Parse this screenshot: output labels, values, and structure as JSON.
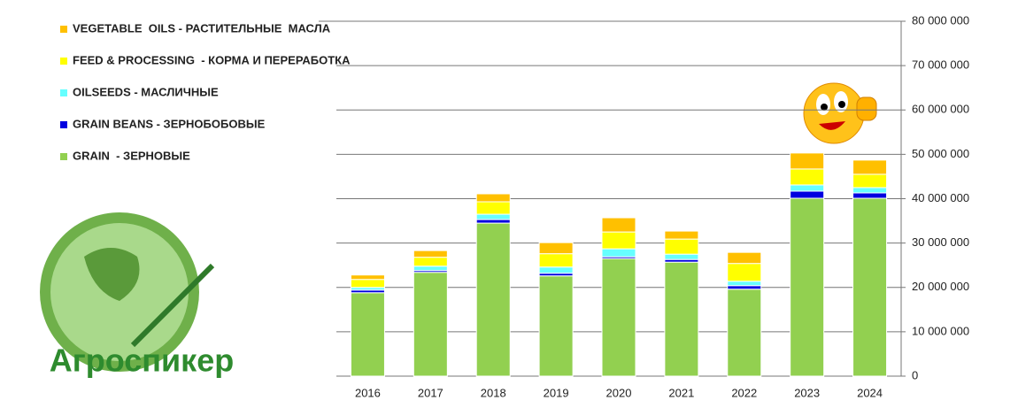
{
  "chart_data": {
    "type": "stacked-bar",
    "categories": [
      "2016",
      "2017",
      "2018",
      "2019",
      "2020",
      "2021",
      "2022",
      "2023",
      "2024"
    ],
    "series": [
      {
        "name": "GRAIN  - ЗЕРНОВЫЕ",
        "color": "#92d050",
        "values": [
          18800000,
          23400000,
          34500000,
          22600000,
          26500000,
          25700000,
          19600000,
          40100000,
          40100000
        ]
      },
      {
        "name": "GRAIN BEANS - ЗЕРНОБОБОВЫЕ",
        "color": "#0000e0",
        "values": [
          600000,
          400000,
          800000,
          600000,
          400000,
          600000,
          800000,
          1600000,
          1200000
        ]
      },
      {
        "name": "OILSEEDS - МАСЛИЧНЫЕ",
        "color": "#66ffff",
        "values": [
          600000,
          1000000,
          1200000,
          1400000,
          1800000,
          1200000,
          1000000,
          1400000,
          1200000
        ]
      },
      {
        "name": "FEED & PROCESSING  - КОРМА И ПЕРЕРАБОТКА",
        "color": "#ffff00",
        "values": [
          1800000,
          2000000,
          2800000,
          3000000,
          3800000,
          3400000,
          4000000,
          3600000,
          3000000
        ]
      },
      {
        "name": "VEGETABLE  OILS - РАСТИТЕЛЬНЫЕ  МАСЛА",
        "color": "#ffc000",
        "values": [
          1000000,
          1500000,
          1800000,
          2500000,
          3200000,
          1800000,
          2500000,
          3600000,
          3200000
        ]
      }
    ],
    "ylim": [
      0,
      80000000
    ],
    "yticks": [
      0,
      {
        "value": 10000000,
        "label": "10 000 000"
      },
      {
        "value": 20000000,
        "label": "20 000 000"
      },
      {
        "value": 30000000,
        "label": "30 000 000"
      },
      {
        "value": 40000000,
        "label": "40 000 000"
      },
      {
        "value": 50000000,
        "label": "50 000 000"
      },
      {
        "value": 60000000,
        "label": "60 000 000"
      },
      {
        "value": 70000000,
        "label": "70 000 000"
      },
      {
        "value": 80000000,
        "label": "80 000 000"
      }
    ],
    "grid": true,
    "legend": "upper-left",
    "logo_text": "Агроспикер"
  }
}
